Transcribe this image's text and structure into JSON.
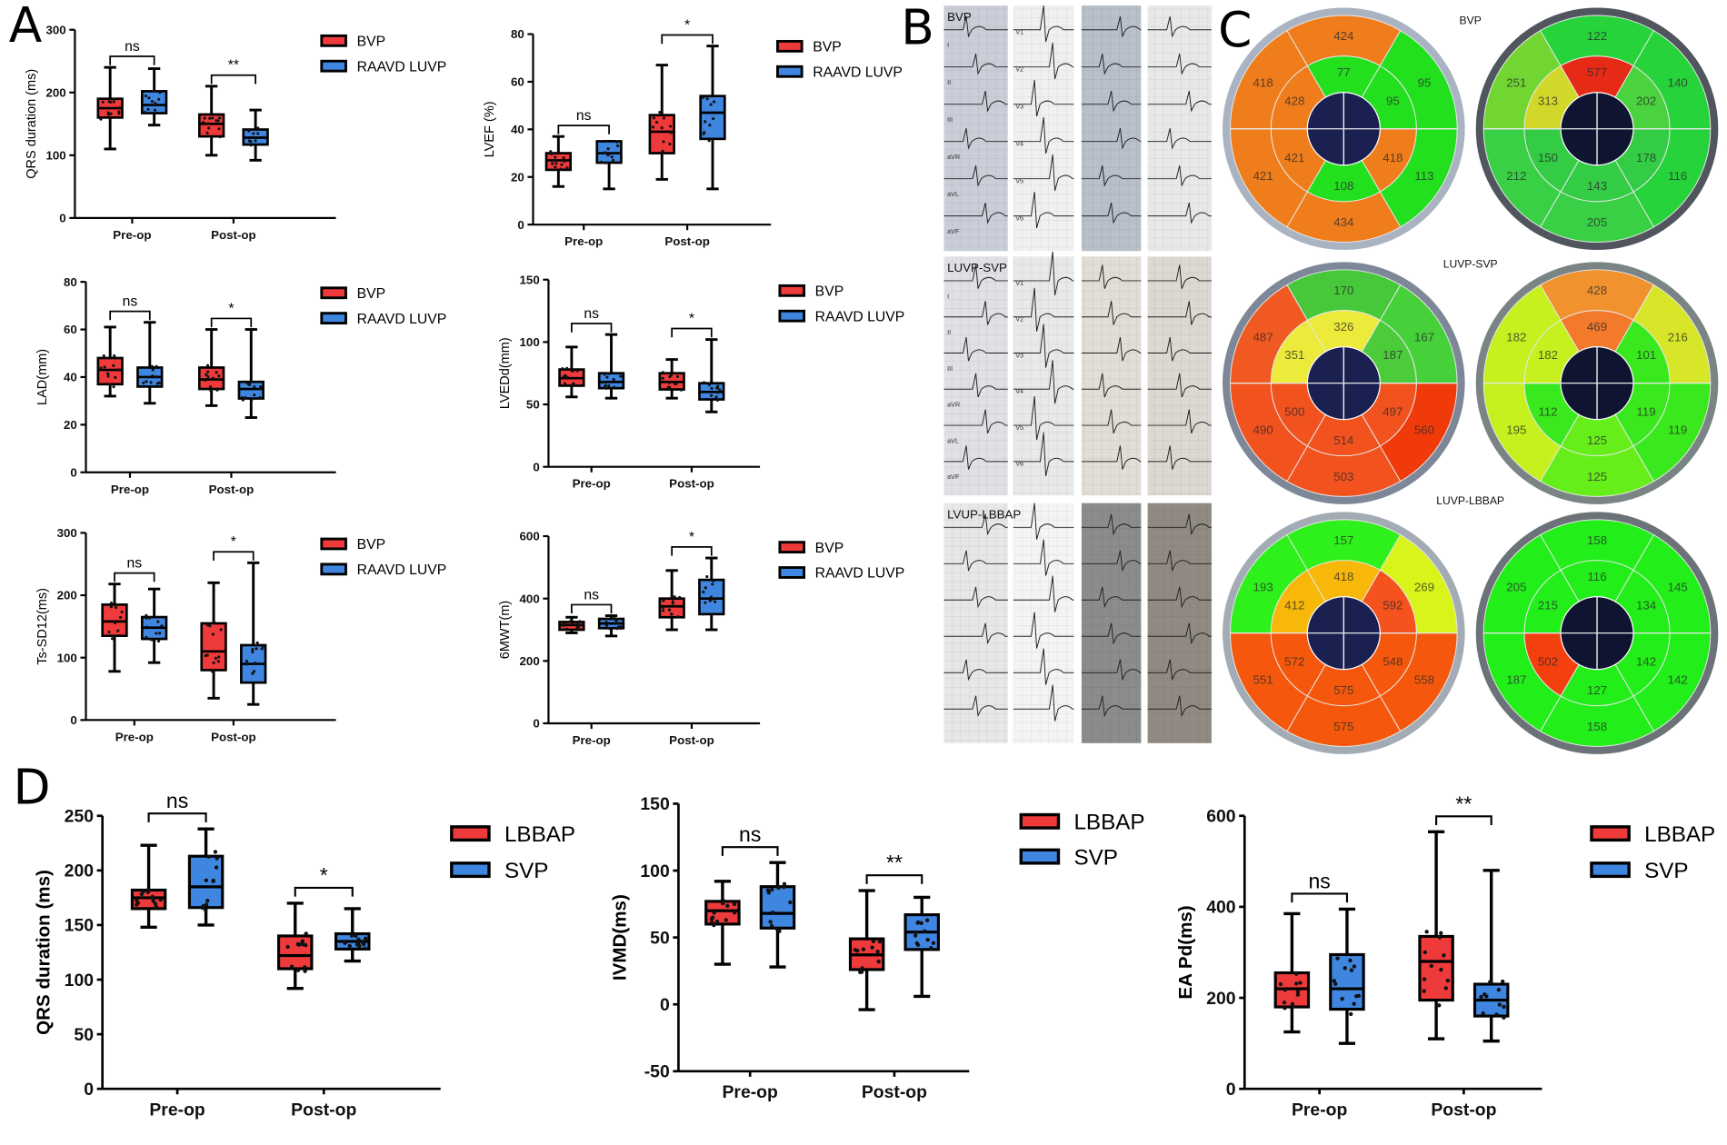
{
  "panel_labels": {
    "A": "A",
    "B": "B",
    "C": "C",
    "D": "D"
  },
  "chart_data": [
    {
      "type": "box",
      "title": "",
      "ylabel": "QRS duration (ms)",
      "ylim": [
        0,
        300
      ],
      "yticks": [
        0,
        100,
        200,
        300
      ],
      "categories": [
        "Pre-op",
        "Post-op"
      ],
      "series": [
        {
          "name": "BVP",
          "color": "#ee3a3a",
          "boxes": [
            [
              110,
              160,
              175,
              190,
              240
            ],
            [
              100,
              130,
              150,
              165,
              210
            ]
          ]
        },
        {
          "name": "RAAVD LUVP",
          "color": "#3f86e0",
          "boxes": [
            [
              148,
              167,
              180,
              202,
              238
            ],
            [
              92,
              117,
              128,
              141,
              172
            ]
          ]
        }
      ],
      "significance": [
        "ns",
        "**"
      ]
    },
    {
      "type": "box",
      "title": "",
      "ylabel": "LVEF (%)",
      "ylim": [
        0,
        80
      ],
      "yticks": [
        0,
        20,
        40,
        60,
        80
      ],
      "categories": [
        "Pre-op",
        "Post-op"
      ],
      "series": [
        {
          "name": "BVP",
          "color": "#ee3a3a",
          "boxes": [
            [
              16,
              23,
              27,
              30,
              37
            ],
            [
              19,
              30,
              39,
              46,
              67
            ]
          ]
        },
        {
          "name": "RAAVD LUVP",
          "color": "#3f86e0",
          "boxes": [
            [
              15,
              26,
              30,
              35,
              35
            ],
            [
              15,
              36,
              47,
              54,
              75
            ]
          ]
        }
      ],
      "significance": [
        "ns",
        "*"
      ]
    },
    {
      "type": "box",
      "title": "",
      "ylabel": "LAD(mm)",
      "ylim": [
        0,
        80
      ],
      "yticks": [
        0,
        20,
        40,
        60,
        80
      ],
      "categories": [
        "Pre-op",
        "Post-op"
      ],
      "series": [
        {
          "name": "BVP",
          "color": "#ee3a3a",
          "boxes": [
            [
              32,
              37,
              43,
              48,
              61
            ],
            [
              28,
              35,
              39,
              44,
              60
            ]
          ]
        },
        {
          "name": "RAAVD LUVP",
          "color": "#3f86e0",
          "boxes": [
            [
              29,
              36,
              40,
              44,
              63
            ],
            [
              23,
              31,
              35,
              38,
              60
            ]
          ]
        }
      ],
      "significance": [
        "ns",
        "*"
      ]
    },
    {
      "type": "box",
      "title": "",
      "ylabel": "LVEDd(mm)",
      "ylim": [
        0,
        150
      ],
      "yticks": [
        0,
        50,
        100,
        150
      ],
      "categories": [
        "Pre-op",
        "Post-op"
      ],
      "series": [
        {
          "name": "BVP",
          "color": "#ee3a3a",
          "boxes": [
            [
              56,
              65,
              71,
              78,
              96
            ],
            [
              55,
              62,
              68,
              75,
              86
            ]
          ]
        },
        {
          "name": "RAAVD LUVP",
          "color": "#3f86e0",
          "boxes": [
            [
              55,
              63,
              68,
              75,
              106
            ],
            [
              44,
              54,
              60,
              67,
              102
            ]
          ]
        }
      ],
      "significance": [
        "ns",
        "*"
      ]
    },
    {
      "type": "box",
      "title": "",
      "ylabel": "Ts-SD12(ms)",
      "ylim": [
        0,
        300
      ],
      "yticks": [
        0,
        100,
        200,
        300
      ],
      "categories": [
        "Pre-op",
        "Post-op"
      ],
      "series": [
        {
          "name": "BVP",
          "color": "#ee3a3a",
          "boxes": [
            [
              78,
              135,
              158,
              185,
              218
            ],
            [
              35,
              80,
              110,
              155,
              220
            ]
          ]
        },
        {
          "name": "RAAVD LUVP",
          "color": "#3f86e0",
          "boxes": [
            [
              92,
              130,
              148,
              165,
              210
            ],
            [
              25,
              60,
              90,
              120,
              252
            ]
          ]
        }
      ],
      "significance": [
        "ns",
        "*"
      ]
    },
    {
      "type": "box",
      "title": "",
      "ylabel": "6MWT(m)",
      "ylim": [
        0,
        600
      ],
      "yticks": [
        0,
        200,
        400,
        600
      ],
      "categories": [
        "Pre-op",
        "Post-op"
      ],
      "series": [
        {
          "name": "BVP",
          "color": "#ee3a3a",
          "boxes": [
            [
              290,
              300,
              315,
              325,
              340
            ],
            [
              300,
              340,
              375,
              400,
              490
            ]
          ]
        },
        {
          "name": "RAAVD LUVP",
          "color": "#3f86e0",
          "boxes": [
            [
              280,
              305,
              320,
              335,
              345
            ],
            [
              300,
              350,
              400,
              460,
              530
            ]
          ]
        }
      ],
      "significance": [
        "ns",
        "*"
      ]
    },
    {
      "type": "box",
      "title": "",
      "ylabel": "QRS duration (ms)",
      "ylim": [
        0,
        250
      ],
      "yticks": [
        0,
        50,
        100,
        150,
        200,
        250
      ],
      "categories": [
        "Pre-op",
        "Post-op"
      ],
      "series": [
        {
          "name": "LBBAP",
          "color": "#ee3a3a",
          "boxes": [
            [
              148,
              165,
              175,
              182,
              223
            ],
            [
              92,
              110,
              122,
              140,
              170
            ]
          ]
        },
        {
          "name": "SVP",
          "color": "#3f86e0",
          "boxes": [
            [
              150,
              166,
              185,
              213,
              238
            ],
            [
              117,
              128,
              135,
              142,
              165
            ]
          ]
        }
      ],
      "significance": [
        "ns",
        "*"
      ]
    },
    {
      "type": "box",
      "title": "",
      "ylabel": "IVMD(ms)",
      "ylim": [
        -50,
        150
      ],
      "yticks": [
        -50,
        0,
        50,
        100,
        150
      ],
      "categories": [
        "Pre-op",
        "Post-op"
      ],
      "series": [
        {
          "name": "LBBAP",
          "color": "#ee3a3a",
          "boxes": [
            [
              30,
              60,
              70,
              77,
              92
            ],
            [
              -4,
              26,
              37,
              49,
              85
            ]
          ]
        },
        {
          "name": "SVP",
          "color": "#3f86e0",
          "boxes": [
            [
              28,
              57,
              68,
              88,
              106
            ],
            [
              6,
              41,
              54,
              67,
              80
            ]
          ]
        }
      ],
      "significance": [
        "ns",
        "**"
      ]
    },
    {
      "type": "box",
      "title": "",
      "ylabel": "EA Pd(ms)",
      "ylim": [
        0,
        600
      ],
      "yticks": [
        0,
        200,
        400,
        600
      ],
      "categories": [
        "Pre-op",
        "Post-op"
      ],
      "series": [
        {
          "name": "LBBAP",
          "color": "#ee3a3a",
          "boxes": [
            [
              125,
              180,
              220,
              255,
              385
            ],
            [
              110,
              195,
              280,
              335,
              565
            ]
          ]
        },
        {
          "name": "SVP",
          "color": "#3f86e0",
          "boxes": [
            [
              100,
              175,
              220,
              295,
              395
            ],
            [
              105,
              160,
              195,
              230,
              480
            ]
          ]
        }
      ],
      "significance": [
        "ns",
        "**"
      ]
    }
  ],
  "ecg": {
    "rows": [
      {
        "label": "BVP",
        "leads_limb": [
          "I",
          "II",
          "III",
          "aVR",
          "aVL",
          "aVF"
        ],
        "leads_chest": [
          "V1",
          "V2",
          "V3",
          "V4",
          "V5",
          "V6"
        ],
        "tints": [
          "#c9ced8",
          "#eef0f2",
          "#b9bfcb",
          "#e6e8ea"
        ]
      },
      {
        "label": "LUVP-SVP",
        "leads_limb": [
          "I",
          "II",
          "III",
          "aVR",
          "aVL",
          "aVF"
        ],
        "leads_chest": [
          "V1",
          "V2",
          "V3",
          "V4",
          "V5",
          "V6"
        ],
        "tints": [
          "#dfe1e4",
          "#e8e9ea",
          "#e2ded6",
          "#ddd9d2"
        ]
      },
      {
        "label": "LVUP-LBBAP",
        "leads_limb": [],
        "leads_chest": [],
        "tints": [
          "#e6e7e8",
          "#f4f4f4",
          "#8c8c8c",
          "#908a82"
        ]
      }
    ]
  },
  "bullseye": {
    "rows": [
      {
        "label": "BVP",
        "maps": [
          {
            "outer": [
              424,
              95,
              113,
              434,
              421,
              418
            ],
            "outer_colors": [
              "#f07d1c",
              "#22e01e",
              "#22e01e",
              "#f07d1c",
              "#f07d1c",
              "#f07d1c"
            ],
            "middle": [
              77,
              95,
              418,
              108,
              421,
              428
            ],
            "middle_colors": [
              "#22e01e",
              "#22e01e",
              "#f07d1c",
              "#22e01e",
              "#f07d1c",
              "#f07d1c"
            ],
            "rim": "#a9b3c2"
          },
          {
            "outer": [
              122,
              140,
              116,
              205,
              212,
              251
            ],
            "outer_colors": [
              "#26d33a",
              "#26d33a",
              "#26d33a",
              "#3ad046",
              "#3ad046",
              "#72d632"
            ],
            "middle": [
              577,
              202,
              178,
              143,
              150,
              313
            ],
            "middle_colors": [
              "#e52a16",
              "#4ad33e",
              "#33cc44",
              "#33cc44",
              "#33cc44",
              "#d2d82a"
            ],
            "rim": "#50555e"
          }
        ]
      },
      {
        "label": "LUVP-SVP",
        "maps": [
          {
            "outer": [
              170,
              167,
              560,
              503,
              490,
              487
            ],
            "outer_colors": [
              "#46c83a",
              "#46d03a",
              "#f03a0a",
              "#f2531e",
              "#f2531e",
              "#f05a22"
            ],
            "middle": [
              326,
              187,
              497,
              514,
              500,
              351
            ],
            "middle_colors": [
              "#ecea3a",
              "#4ccc3a",
              "#f2531e",
              "#f2531e",
              "#f2531e",
              "#ecea3a"
            ],
            "rim": "#7e8798"
          },
          {
            "outer": [
              428,
              216,
              119,
              125,
              195,
              182
            ],
            "outer_colors": [
              "#f2922e",
              "#d8e62a",
              "#3ae81e",
              "#66ee1a",
              "#c6f01e",
              "#c6f01e"
            ],
            "middle": [
              469,
              101,
              119,
              125,
              112,
              182
            ],
            "middle_colors": [
              "#f27a2a",
              "#3ae81e",
              "#3ae81e",
              "#66ee1a",
              "#3ae81e",
              "#c6f01e"
            ],
            "rim": "#7a8484"
          }
        ]
      },
      {
        "label": "LUVP-LBBAP",
        "maps": [
          {
            "outer": [
              157,
              269,
              558,
              575,
              551,
              193
            ],
            "outer_colors": [
              "#2ef01a",
              "#d8f41a",
              "#f5580c",
              "#f5580c",
              "#f5580c",
              "#2ef01a"
            ],
            "middle": [
              418,
              592,
              548,
              575,
              572,
              412
            ],
            "middle_colors": [
              "#f8b80a",
              "#f5521e",
              "#f5580c",
              "#f5580c",
              "#f5580c",
              "#f8b80a"
            ],
            "rim": "#a3acb4"
          },
          {
            "outer": [
              158,
              145,
              142,
              158,
              187,
              205
            ],
            "outer_colors": [
              "#22ee1a",
              "#22ee1a",
              "#22ee1a",
              "#22ee1a",
              "#22ee1a",
              "#22ee1a"
            ],
            "middle": [
              116,
              134,
              142,
              127,
              502,
              215
            ],
            "middle_colors": [
              "#22ee1a",
              "#22ee1a",
              "#22ee1a",
              "#22ee1a",
              "#f4400e",
              "#22ee1a"
            ],
            "rim": "#6c7378"
          }
        ]
      }
    ]
  }
}
